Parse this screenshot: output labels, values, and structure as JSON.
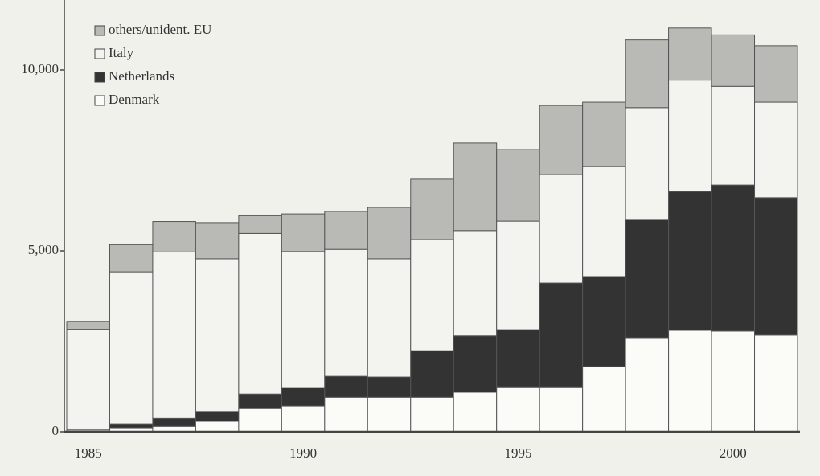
{
  "chart_data": {
    "type": "stacked_bar",
    "categories": [
      "1985",
      null,
      null,
      null,
      null,
      "1990",
      null,
      null,
      null,
      null,
      "1995",
      null,
      null,
      null,
      null,
      "2000",
      null
    ],
    "series": [
      {
        "name": "others/unident. EU",
        "color": "#b9b9b6",
        "values": [
          220,
          750,
          840,
          1000,
          490,
          1040,
          1050,
          1420,
          1670,
          2420,
          1980,
          1910,
          1780,
          1870,
          1440,
          1420,
          1560
        ]
      },
      {
        "name": "Italy",
        "color": "#f3f3ef",
        "values": [
          2780,
          4200,
          4600,
          4220,
          4440,
          3760,
          3510,
          3270,
          3070,
          2910,
          3000,
          3000,
          3040,
          3090,
          3080,
          2730,
          2640
        ]
      },
      {
        "name": "Netherlands",
        "color": "#333333",
        "values": [
          0,
          110,
          220,
          270,
          400,
          510,
          580,
          560,
          1290,
          1560,
          1580,
          2870,
          2490,
          3270,
          3840,
          4040,
          3800
        ]
      },
      {
        "name": "Denmark",
        "color": "#fbfbf8",
        "values": [
          50,
          110,
          150,
          290,
          640,
          710,
          950,
          950,
          950,
          1090,
          1240,
          1240,
          1800,
          2600,
          2800,
          2780,
          2670
        ]
      }
    ],
    "ylim": [
      0,
      12000
    ],
    "yticks": [
      0,
      {
        "value": 5000,
        "label": "5,000"
      },
      {
        "value": 10000,
        "label": "10,000"
      }
    ],
    "legend": "upper left"
  }
}
